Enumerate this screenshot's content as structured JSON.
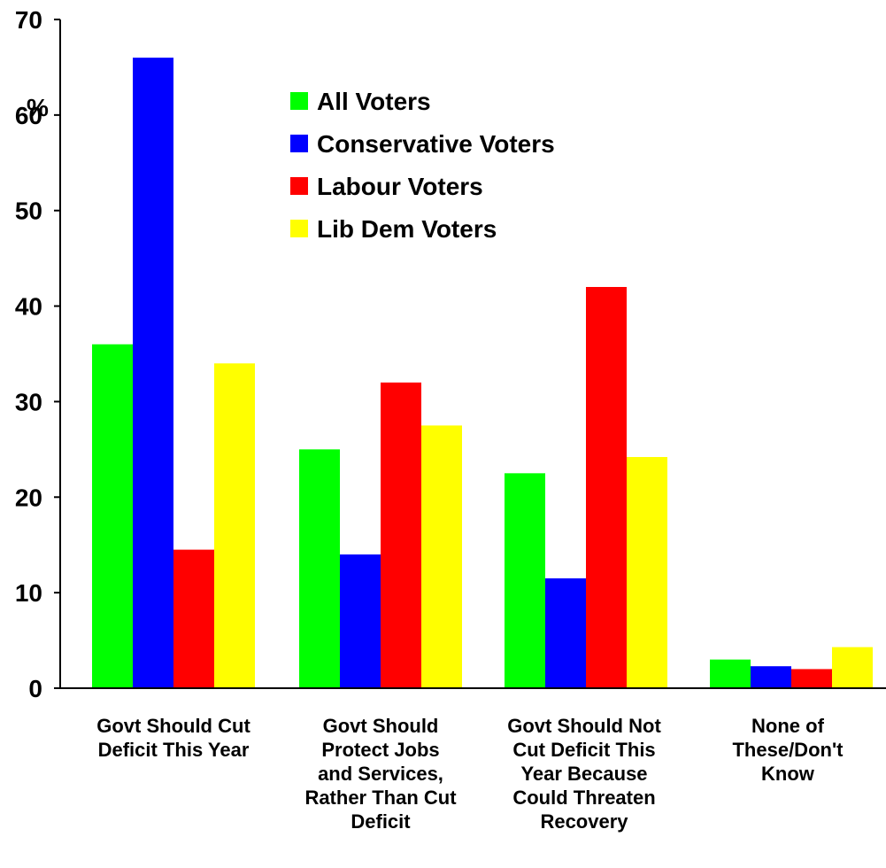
{
  "chart_data": {
    "type": "bar",
    "title": "",
    "xlabel": "",
    "ylabel": "%",
    "ylim": [
      0,
      70
    ],
    "yticks": [
      0,
      10,
      20,
      30,
      40,
      50,
      60,
      70
    ],
    "grid": false,
    "legend_position": "top-center",
    "categories": [
      [
        "Govt Should Cut",
        "Deficit This Year"
      ],
      [
        "Govt Should",
        "Protect Jobs",
        "and Services,",
        "Rather Than Cut",
        "Deficit"
      ],
      [
        "Govt Should Not",
        "Cut Deficit This",
        "Year Because",
        "Could Threaten",
        "Recovery"
      ],
      [
        "None of",
        "These/Don't",
        "Know"
      ]
    ],
    "series": [
      {
        "name": "All Voters",
        "color": "#00ff00",
        "values": [
          36,
          25,
          22.5,
          3
        ]
      },
      {
        "name": "Conservative Voters",
        "color": "#0000ff",
        "values": [
          66,
          14,
          11.5,
          2.3
        ]
      },
      {
        "name": "Labour Voters",
        "color": "#ff0000",
        "values": [
          14.5,
          32,
          42,
          2
        ]
      },
      {
        "name": "Lib Dem Voters",
        "color": "#ffff00",
        "values": [
          34,
          27.5,
          24.2,
          4.3
        ]
      }
    ]
  }
}
